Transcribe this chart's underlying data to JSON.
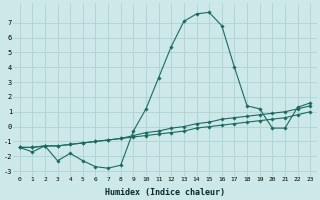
{
  "xlabel": "Humidex (Indice chaleur)",
  "background_color": "#cce8e8",
  "line_color": "#1a6b60",
  "grid_color": "#aacece",
  "xlim": [
    -0.5,
    23.5
  ],
  "ylim": [
    -3.3,
    8.3
  ],
  "xticks": [
    0,
    1,
    2,
    3,
    4,
    5,
    6,
    7,
    8,
    9,
    10,
    11,
    12,
    13,
    14,
    15,
    16,
    17,
    18,
    19,
    20,
    21,
    22,
    23
  ],
  "yticks": [
    -3,
    -2,
    -1,
    0,
    1,
    2,
    3,
    4,
    5,
    6,
    7
  ],
  "line1_x": [
    0,
    1,
    2,
    3,
    4,
    5,
    6,
    7,
    8,
    9,
    10,
    11,
    12,
    13,
    14,
    15,
    16,
    17,
    18,
    19,
    20,
    21,
    22,
    23
  ],
  "line1_y": [
    -1.4,
    -1.7,
    -1.3,
    -2.3,
    -1.8,
    -2.3,
    -2.7,
    -2.8,
    -2.6,
    -0.3,
    1.2,
    3.3,
    5.4,
    7.1,
    7.6,
    7.7,
    6.8,
    4.0,
    1.4,
    1.2,
    -0.1,
    -0.1,
    1.3,
    1.6
  ],
  "line2_x": [
    0,
    1,
    2,
    3,
    4,
    5,
    6,
    7,
    8,
    9,
    10,
    11,
    12,
    13,
    14,
    15,
    16,
    17,
    18,
    19,
    20,
    21,
    22,
    23
  ],
  "line2_y": [
    -1.4,
    -1.4,
    -1.3,
    -1.3,
    -1.2,
    -1.1,
    -1.0,
    -0.9,
    -0.8,
    -0.6,
    -0.4,
    -0.3,
    -0.1,
    0.0,
    0.2,
    0.3,
    0.5,
    0.6,
    0.7,
    0.8,
    0.9,
    1.0,
    1.2,
    1.4
  ],
  "line3_x": [
    0,
    1,
    2,
    3,
    4,
    5,
    6,
    7,
    8,
    9,
    10,
    11,
    12,
    13,
    14,
    15,
    16,
    17,
    18,
    19,
    20,
    21,
    22,
    23
  ],
  "line3_y": [
    -1.4,
    -1.4,
    -1.3,
    -1.3,
    -1.2,
    -1.1,
    -1.0,
    -0.9,
    -0.8,
    -0.7,
    -0.6,
    -0.5,
    -0.4,
    -0.3,
    -0.1,
    0.0,
    0.1,
    0.2,
    0.3,
    0.4,
    0.5,
    0.6,
    0.8,
    1.0
  ]
}
